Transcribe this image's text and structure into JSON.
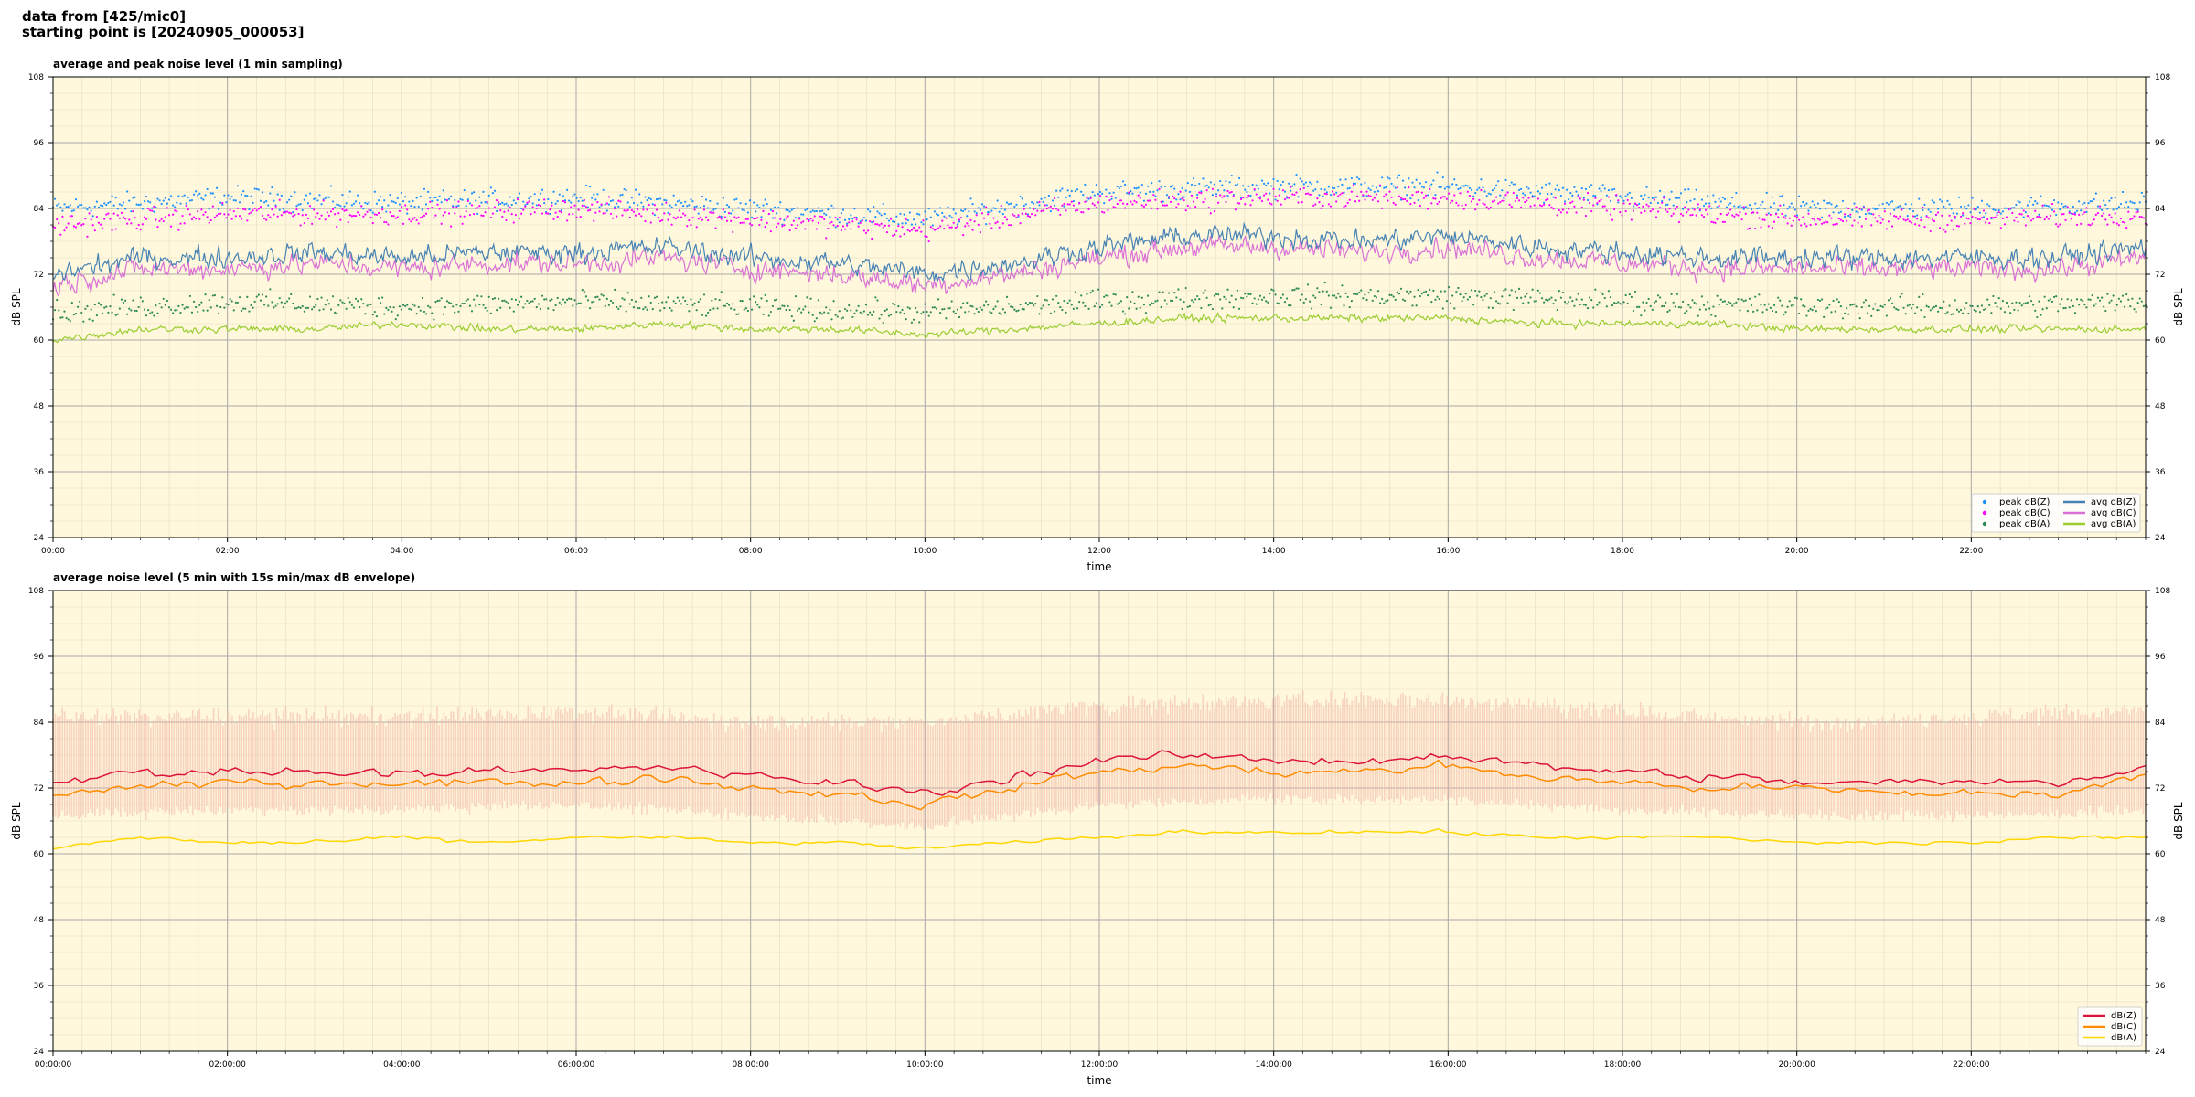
{
  "header": {
    "line1": "data from [425/mic0]",
    "line2": "starting point is [20240905_000053]"
  },
  "colors": {
    "background": "#fff8dc",
    "avg_z": "#4682b4",
    "avg_c": "#da70d6",
    "avg_a": "#9acd32",
    "peak_z": "#1e90ff",
    "peak_c": "#ff00ff",
    "peak_a": "#2e8b57",
    "dbz": "#dc143c",
    "dbc": "#ff8c00",
    "dba": "#ffd700",
    "envelope": "#f4b6a8"
  },
  "chart_data": [
    {
      "type": "line",
      "title": "average and peak noise level (1 min sampling)",
      "xlabel": "time",
      "ylabel": "dB SPL",
      "xlim": [
        0,
        24
      ],
      "ylim": [
        24,
        108
      ],
      "xtick_labels": [
        "00:00",
        "02:00",
        "04:00",
        "06:00",
        "08:00",
        "10:00",
        "12:00",
        "14:00",
        "16:00",
        "18:00",
        "20:00",
        "22:00"
      ],
      "ytick_labels": [
        "24",
        "36",
        "48",
        "60",
        "72",
        "84",
        "96",
        "108"
      ],
      "grid": true,
      "legend": "bottom-right",
      "legend_entries": [
        "peak dB(Z)",
        "peak dB(C)",
        "peak dB(A)",
        "avg dB(Z)",
        "avg dB(C)",
        "avg dB(A)"
      ],
      "series": [
        {
          "name": "avg dB(Z)",
          "kind": "line",
          "x": [
            0,
            1,
            2,
            3,
            4,
            5,
            6,
            7,
            8,
            9,
            10,
            11,
            12,
            13,
            14,
            15,
            16,
            17,
            18,
            19,
            20,
            21,
            22,
            23,
            24
          ],
          "values": [
            72,
            75,
            75,
            76,
            75,
            76,
            76,
            77,
            75,
            74,
            72,
            74,
            77,
            79,
            79,
            78,
            79,
            77,
            76,
            75,
            75,
            75,
            75,
            75,
            77
          ]
        },
        {
          "name": "avg dB(C)",
          "kind": "line",
          "x": [
            0,
            1,
            2,
            3,
            4,
            5,
            6,
            7,
            8,
            9,
            10,
            11,
            12,
            13,
            14,
            15,
            16,
            17,
            18,
            19,
            20,
            21,
            22,
            23,
            24
          ],
          "values": [
            70,
            73,
            73,
            74,
            73,
            74,
            74,
            75,
            73,
            72,
            70,
            72,
            75,
            77,
            77,
            76,
            77,
            75,
            74,
            73,
            73,
            73,
            73,
            73,
            75
          ]
        },
        {
          "name": "avg dB(A)",
          "kind": "line",
          "x": [
            0,
            1,
            2,
            3,
            4,
            5,
            6,
            7,
            8,
            9,
            10,
            11,
            12,
            13,
            14,
            15,
            16,
            17,
            18,
            19,
            20,
            21,
            22,
            23,
            24
          ],
          "values": [
            60,
            62,
            62,
            62,
            63,
            62,
            62,
            63,
            62,
            62,
            61,
            62,
            63,
            64,
            64,
            64,
            64,
            63,
            63,
            63,
            62,
            62,
            62,
            62,
            62
          ]
        },
        {
          "name": "peak dB(Z)",
          "kind": "scatter",
          "x": [
            0,
            2,
            4,
            6,
            8,
            10,
            12,
            14,
            16,
            18,
            20,
            22,
            24
          ],
          "values": [
            84,
            86,
            85,
            86,
            84,
            82,
            87,
            88,
            88,
            86,
            84,
            84,
            85
          ]
        },
        {
          "name": "peak dB(C)",
          "kind": "scatter",
          "x": [
            0,
            2,
            4,
            6,
            8,
            10,
            12,
            14,
            16,
            18,
            20,
            22,
            24
          ],
          "values": [
            81,
            83,
            83,
            84,
            82,
            80,
            85,
            86,
            86,
            84,
            82,
            82,
            83
          ]
        },
        {
          "name": "peak dB(A)",
          "kind": "scatter",
          "x": [
            0,
            2,
            4,
            6,
            8,
            10,
            12,
            14,
            16,
            18,
            20,
            22,
            24
          ],
          "values": [
            65,
            67,
            66,
            67,
            66,
            65,
            67,
            68,
            68,
            67,
            66,
            66,
            67
          ]
        }
      ]
    },
    {
      "type": "line",
      "title": "average noise level (5 min with 15s min/max dB envelope)",
      "xlabel": "time",
      "ylabel": "dB SPL",
      "xlim": [
        0,
        24
      ],
      "ylim": [
        24,
        108
      ],
      "xtick_labels": [
        "00:00:00",
        "02:00:00",
        "04:00:00",
        "06:00:00",
        "08:00:00",
        "10:00:00",
        "12:00:00",
        "14:00:00",
        "16:00:00",
        "18:00:00",
        "20:00:00",
        "22:00:00"
      ],
      "ytick_labels": [
        "24",
        "36",
        "48",
        "60",
        "72",
        "84",
        "96",
        "108"
      ],
      "grid": true,
      "legend": "bottom-right",
      "legend_entries": [
        "dB(Z)",
        "dB(C)",
        "dB(A)"
      ],
      "series": [
        {
          "name": "dB(Z)",
          "kind": "line",
          "x": [
            0,
            1,
            2,
            3,
            4,
            5,
            6,
            7,
            8,
            9,
            10,
            11,
            12,
            13,
            14,
            15,
            16,
            17,
            18,
            19,
            20,
            21,
            22,
            23,
            24
          ],
          "values": [
            73,
            75,
            75,
            75,
            75,
            75,
            75,
            76,
            74,
            73,
            71,
            74,
            77,
            78,
            77,
            77,
            78,
            76,
            75,
            74,
            73,
            73,
            73,
            73,
            76
          ]
        },
        {
          "name": "dB(C)",
          "kind": "line",
          "x": [
            0,
            1,
            2,
            3,
            4,
            5,
            6,
            7,
            8,
            9,
            10,
            11,
            12,
            13,
            14,
            15,
            16,
            17,
            18,
            19,
            20,
            21,
            22,
            23,
            24
          ],
          "values": [
            71,
            72,
            73,
            73,
            73,
            73,
            73,
            74,
            72,
            71,
            69,
            72,
            75,
            76,
            75,
            75,
            76,
            74,
            73,
            72,
            72,
            71,
            71,
            71,
            74
          ]
        },
        {
          "name": "dB(A)",
          "kind": "line",
          "x": [
            0,
            1,
            2,
            3,
            4,
            5,
            6,
            7,
            8,
            9,
            10,
            11,
            12,
            13,
            14,
            15,
            16,
            17,
            18,
            19,
            20,
            21,
            22,
            23,
            24
          ],
          "values": [
            61,
            63,
            62,
            62,
            63,
            62,
            63,
            63,
            62,
            62,
            61,
            62,
            63,
            64,
            64,
            64,
            64,
            63,
            63,
            63,
            62,
            62,
            62,
            63,
            63
          ]
        },
        {
          "name": "envelope max",
          "kind": "band-upper",
          "x": [
            0,
            2,
            4,
            6,
            8,
            10,
            12,
            14,
            16,
            18,
            20,
            22,
            24
          ],
          "values": [
            85,
            85,
            85,
            86,
            84,
            84,
            87,
            88,
            88,
            86,
            84,
            85,
            86
          ]
        },
        {
          "name": "envelope min",
          "kind": "band-lower",
          "x": [
            0,
            2,
            4,
            6,
            8,
            10,
            12,
            14,
            16,
            18,
            20,
            22,
            24
          ],
          "values": [
            67,
            68,
            68,
            69,
            67,
            65,
            69,
            70,
            70,
            68,
            67,
            67,
            68
          ]
        }
      ]
    }
  ]
}
